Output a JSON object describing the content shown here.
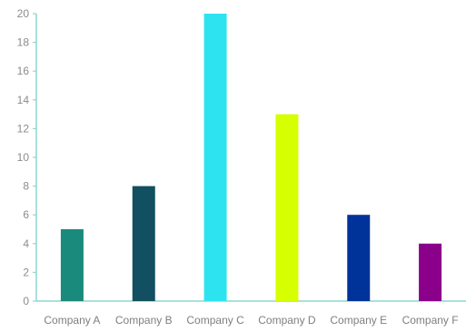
{
  "chart_data": {
    "type": "bar",
    "categories": [
      "Company A",
      "Company B",
      "Company C",
      "Company D",
      "Company E",
      "Company F"
    ],
    "values": [
      5,
      8,
      20,
      13,
      6,
      4
    ],
    "colors": [
      "#1a8a7c",
      "#124f60",
      "#2ee3f0",
      "#d6ff00",
      "#003399",
      "#8a008a"
    ],
    "ylim": [
      0,
      20
    ],
    "yticks": [
      0,
      2,
      4,
      6,
      8,
      10,
      12,
      14,
      16,
      18,
      20
    ],
    "grid": false,
    "axis_color": "#8fd6d1"
  }
}
